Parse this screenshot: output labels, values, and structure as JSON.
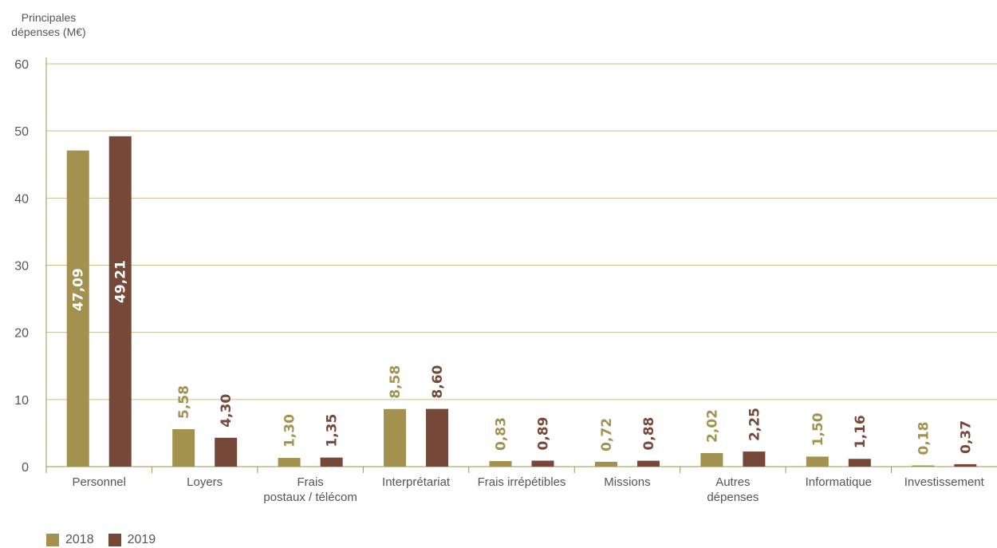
{
  "chart_data": {
    "type": "bar",
    "ylabel": [
      "Principales",
      "dépenses (M€)"
    ],
    "ylim": [
      0,
      60
    ],
    "yticks": [
      0,
      10,
      20,
      30,
      40,
      50,
      60
    ],
    "ytick_labels": [
      "0",
      "10",
      "20",
      "30",
      "40",
      "50",
      "60"
    ],
    "grid": true,
    "legend_position": "bottom-left",
    "categories": [
      [
        "Personnel"
      ],
      [
        "Loyers"
      ],
      [
        "Frais",
        "postaux / télécom"
      ],
      [
        "Interprétariat"
      ],
      [
        "Frais irrépétibles"
      ],
      [
        "Missions"
      ],
      [
        "Autres",
        "dépenses"
      ],
      [
        "Informatique"
      ],
      [
        "Investissement"
      ]
    ],
    "series": [
      {
        "name": "2018",
        "color": "#a39150",
        "values": [
          47.09,
          5.58,
          1.3,
          8.58,
          0.83,
          0.72,
          2.02,
          1.5,
          0.18
        ],
        "labels": [
          "47,09",
          "5,58",
          "1,30",
          "8,58",
          "0,83",
          "0,72",
          "2,02",
          "1,50",
          "0,18"
        ]
      },
      {
        "name": "2019",
        "color": "#764838",
        "values": [
          49.21,
          4.3,
          1.35,
          8.6,
          0.89,
          0.88,
          2.25,
          1.16,
          0.37
        ],
        "labels": [
          "49,21",
          "4,30",
          "1,35",
          "8,60",
          "0,89",
          "0,88",
          "2,25",
          "1,16",
          "0,37"
        ]
      }
    ],
    "colors": {
      "gridline": "#c9bd8a",
      "axis": "#a39150",
      "text": "#555555"
    }
  }
}
